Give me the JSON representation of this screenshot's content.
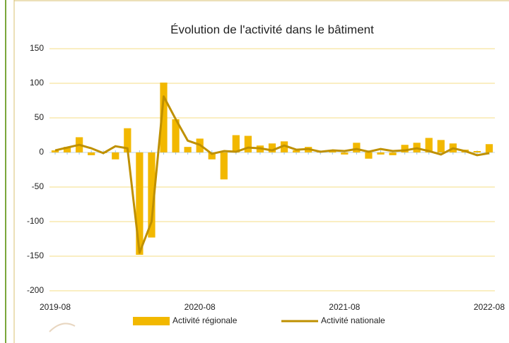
{
  "chart_data": {
    "type": "combo",
    "title": "Évolution de l'activité dans le bâtiment",
    "categories": [
      "2019-08",
      null,
      null,
      null,
      null,
      null,
      null,
      null,
      null,
      null,
      null,
      null,
      "2020-08",
      null,
      null,
      null,
      null,
      null,
      null,
      null,
      null,
      null,
      null,
      null,
      "2021-08",
      null,
      null,
      null,
      null,
      null,
      null,
      null,
      null,
      null,
      null,
      null,
      "2022-08"
    ],
    "series": [
      {
        "name": "Activité régionale",
        "type": "bar",
        "color": "#f2b800",
        "values": [
          3,
          8,
          22,
          -4,
          -1,
          -10,
          35,
          -148,
          -123,
          101,
          48,
          8,
          20,
          -10,
          -39,
          25,
          24,
          10,
          13,
          16,
          3,
          8,
          2,
          2,
          -3,
          14,
          -9,
          -3,
          -4,
          11,
          14,
          21,
          18,
          13,
          4,
          2,
          12
        ]
      },
      {
        "name": "Activité nationale",
        "type": "line",
        "color": "#bf9000",
        "values": [
          3,
          7,
          11,
          6,
          -1,
          9,
          6,
          -145,
          -100,
          81,
          48,
          17,
          11,
          -2,
          2,
          1,
          7,
          6,
          3,
          10,
          4,
          5,
          1,
          3,
          2,
          5,
          1,
          5,
          2,
          3,
          6,
          2,
          -3,
          6,
          2,
          -4,
          -1
        ]
      }
    ],
    "ylim": [
      -200,
      150
    ],
    "yticks": [
      -200,
      -150,
      -100,
      -50,
      0,
      50,
      100,
      150
    ],
    "grid": true,
    "legend": "bottom"
  }
}
